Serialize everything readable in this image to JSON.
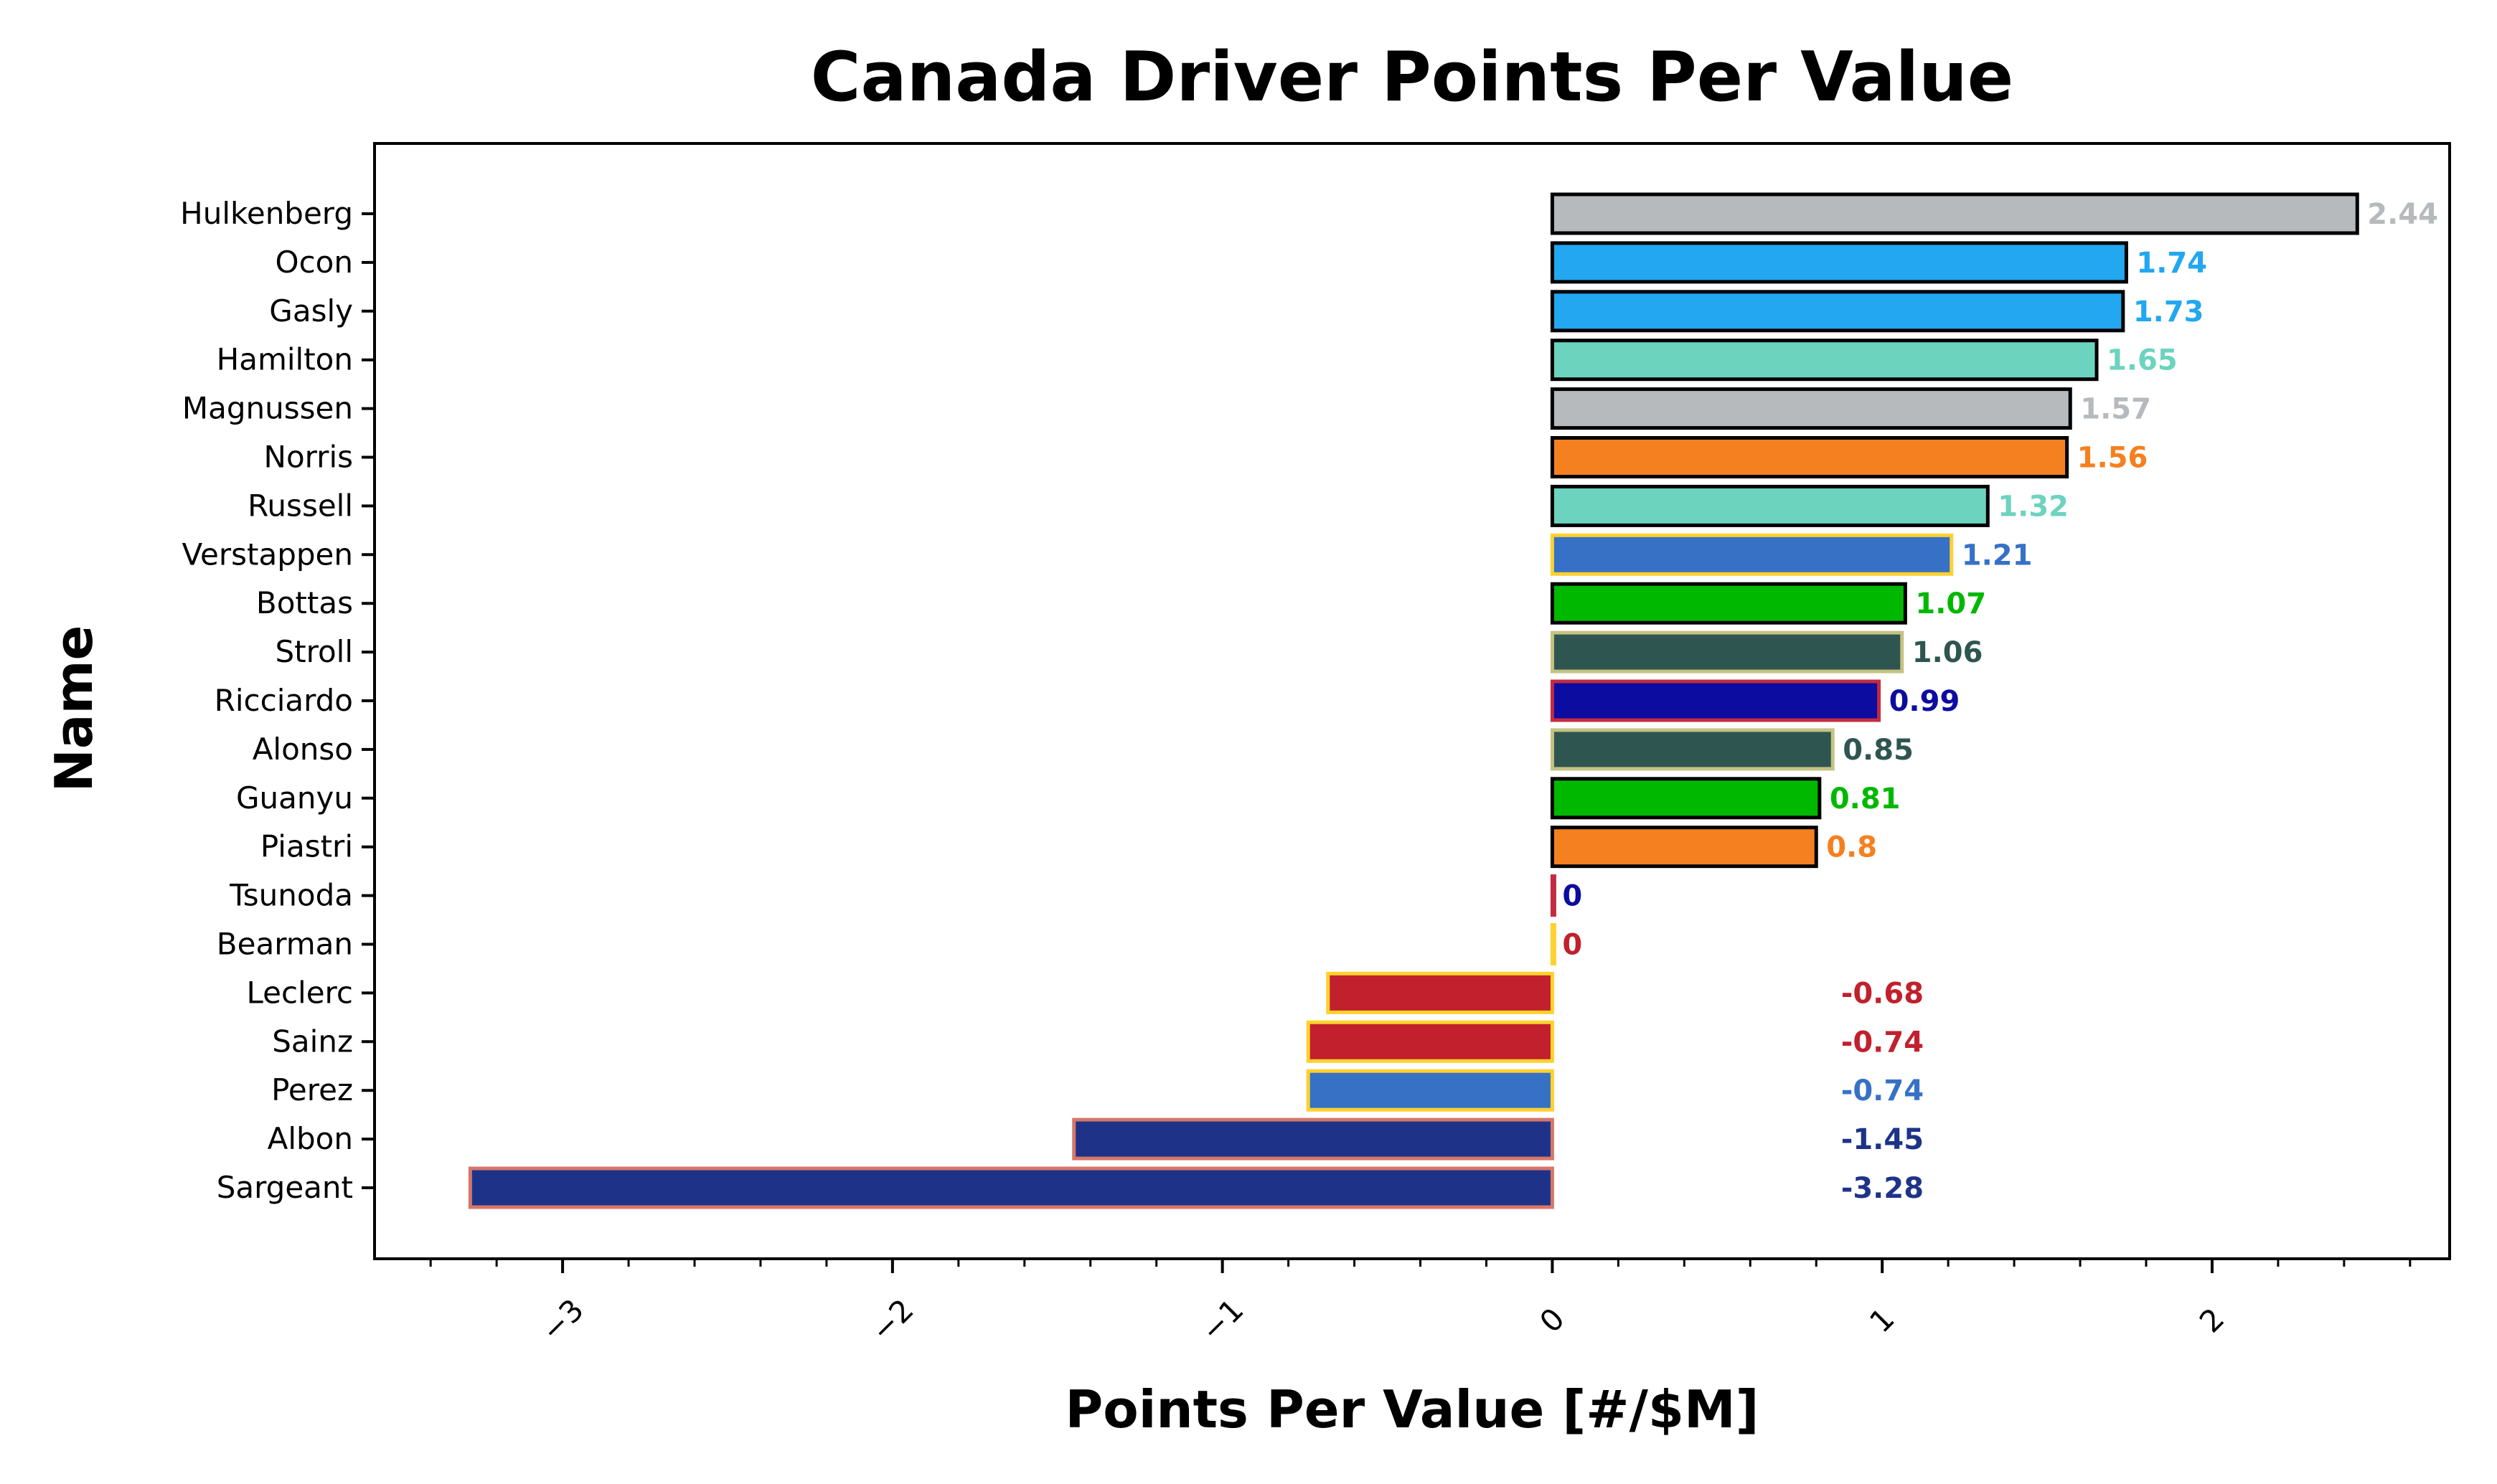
{
  "chart_data": {
    "type": "bar",
    "orientation": "horizontal",
    "title": "Canada Driver Points Per Value",
    "xlabel": "Points Per Value [#/$M]",
    "ylabel": "Name",
    "xlim": [
      -3.57,
      2.72
    ],
    "xticks": [
      -3,
      -2,
      -1,
      0,
      1,
      2
    ],
    "xtick_labels": [
      "−3",
      "−2",
      "−1",
      "0",
      "1",
      "2"
    ],
    "xtick_label_rotation": -45,
    "grid": false,
    "legend": "none",
    "bars": [
      {
        "name": "Hulkenberg",
        "value": 2.44,
        "label": "2.44",
        "color": "#b6babd",
        "edge": "#000000",
        "label_color": "#b6babd"
      },
      {
        "name": "Ocon",
        "value": 1.74,
        "label": "1.74",
        "color": "#22a7f0",
        "edge": "#000000",
        "label_color": "#22a7f0"
      },
      {
        "name": "Gasly",
        "value": 1.73,
        "label": "1.73",
        "color": "#22a7f0",
        "edge": "#000000",
        "label_color": "#22a7f0"
      },
      {
        "name": "Hamilton",
        "value": 1.65,
        "label": "1.65",
        "color": "#6cd3bf",
        "edge": "#000000",
        "label_color": "#6cd3bf"
      },
      {
        "name": "Magnussen",
        "value": 1.57,
        "label": "1.57",
        "color": "#b6babd",
        "edge": "#000000",
        "label_color": "#b6babd"
      },
      {
        "name": "Norris",
        "value": 1.56,
        "label": "1.56",
        "color": "#f58020",
        "edge": "#000000",
        "label_color": "#f58020"
      },
      {
        "name": "Russell",
        "value": 1.32,
        "label": "1.32",
        "color": "#6cd3bf",
        "edge": "#000000",
        "label_color": "#6cd3bf"
      },
      {
        "name": "Verstappen",
        "value": 1.21,
        "label": "1.21",
        "color": "#3671c6",
        "edge": "#ffd12e",
        "label_color": "#3671c6"
      },
      {
        "name": "Bottas",
        "value": 1.07,
        "label": "1.07",
        "color": "#00b800",
        "edge": "#000000",
        "label_color": "#00b800"
      },
      {
        "name": "Stroll",
        "value": 1.06,
        "label": "1.06",
        "color": "#2f5551",
        "edge": "#c5c383",
        "label_color": "#2f5551"
      },
      {
        "name": "Ricciardo",
        "value": 0.99,
        "label": "0.99",
        "color": "#0c0ca1",
        "edge": "#c22c40",
        "label_color": "#0c0ca1"
      },
      {
        "name": "Alonso",
        "value": 0.85,
        "label": "0.85",
        "color": "#2f5551",
        "edge": "#c5c383",
        "label_color": "#2f5551"
      },
      {
        "name": "Guanyu",
        "value": 0.81,
        "label": "0.81",
        "color": "#00b800",
        "edge": "#000000",
        "label_color": "#00b800"
      },
      {
        "name": "Piastri",
        "value": 0.8,
        "label": "0.8",
        "color": "#f58020",
        "edge": "#000000",
        "label_color": "#f58020"
      },
      {
        "name": "Tsunoda",
        "value": 0,
        "label": "0",
        "color": "#0c0ca1",
        "edge": "#c22c40",
        "label_color": "#0c0ca1"
      },
      {
        "name": "Bearman",
        "value": 0,
        "label": "0",
        "color": "#c1202c",
        "edge": "#ffd12e",
        "label_color": "#c1202c"
      },
      {
        "name": "Leclerc",
        "value": -0.68,
        "label": "-0.68",
        "color": "#c1202c",
        "edge": "#ffd12e",
        "label_color": "#c1202c"
      },
      {
        "name": "Sainz",
        "value": -0.74,
        "label": "-0.74",
        "color": "#c1202c",
        "edge": "#ffd12e",
        "label_color": "#c1202c"
      },
      {
        "name": "Perez",
        "value": -0.74,
        "label": "-0.74",
        "color": "#3671c6",
        "edge": "#ffd12e",
        "label_color": "#3671c6"
      },
      {
        "name": "Albon",
        "value": -1.45,
        "label": "-1.45",
        "color": "#1e3388",
        "edge": "#d6776a",
        "label_color": "#1e3388"
      },
      {
        "name": "Sargeant",
        "value": -3.28,
        "label": "-3.28",
        "color": "#1e3388",
        "edge": "#d6776a",
        "label_color": "#1e3388"
      }
    ]
  }
}
